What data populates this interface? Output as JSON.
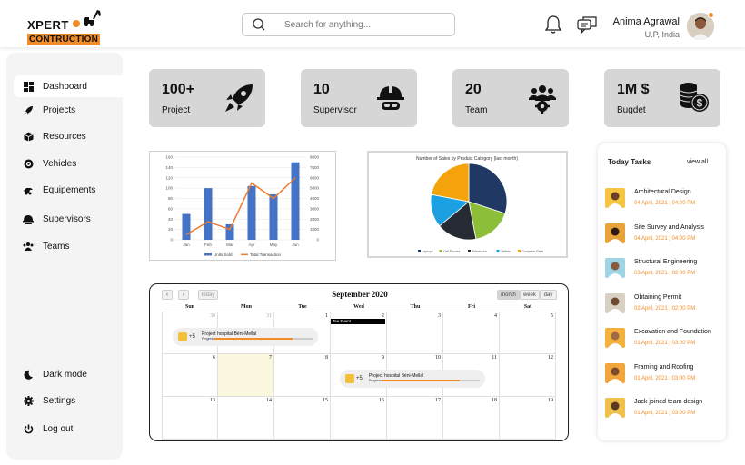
{
  "brand": {
    "line1": "XPERT",
    "line2": "CONTRUCTION",
    "accent": "#f28c28"
  },
  "search": {
    "placeholder": "Search for anything..."
  },
  "user": {
    "name": "Anima Agrawal",
    "location": "U.P, India"
  },
  "sidebar": {
    "items": [
      {
        "label": "Dashboard",
        "icon": "dashboard-icon"
      },
      {
        "label": "Projects",
        "icon": "rocket-icon"
      },
      {
        "label": "Resources",
        "icon": "box-icon"
      },
      {
        "label": "Vehicles",
        "icon": "vehicle-icon"
      },
      {
        "label": "Equipements",
        "icon": "equipment-icon"
      },
      {
        "label": "Supervisors",
        "icon": "helmet-icon"
      },
      {
        "label": "Teams",
        "icon": "team-icon"
      }
    ],
    "bottom": [
      {
        "label": "Dark mode",
        "icon": "moon-icon"
      },
      {
        "label": "Settings",
        "icon": "gear-icon"
      },
      {
        "label": "Log out",
        "icon": "power-icon"
      }
    ]
  },
  "stats": [
    {
      "value": "100+",
      "label": "Project",
      "icon": "rocket-icon"
    },
    {
      "value": "10",
      "label": "Supervisor",
      "icon": "helmet-icon"
    },
    {
      "value": "20",
      "label": "Team",
      "icon": "team-icon"
    },
    {
      "value": "1M $",
      "label": "Bugdet",
      "icon": "coins-icon"
    }
  ],
  "chart_data": [
    {
      "type": "bar",
      "categories": [
        "Jan",
        "Feb",
        "Mar",
        "Apr",
        "May",
        "Jun"
      ],
      "ylim": [
        0,
        160
      ],
      "y_ticks": [
        "160",
        "140",
        "120",
        "100",
        "80",
        "60",
        "40",
        "20",
        "0"
      ],
      "y2lim": [
        0,
        8000
      ],
      "y2_ticks": [
        "8000",
        "7000",
        "6000",
        "5000",
        "4000",
        "3000",
        "2000",
        "1000",
        "0"
      ],
      "series": [
        {
          "name": "Units Sold",
          "type": "bar",
          "axis": "left",
          "values": [
            50,
            100,
            30,
            104,
            88,
            150
          ],
          "color": "#4472c4"
        },
        {
          "name": "Total Transaction",
          "type": "line",
          "axis": "right",
          "values": [
            500,
            1750,
            1000,
            5500,
            4000,
            6000
          ],
          "color": "#ed7d31"
        }
      ],
      "legend": "bottom"
    },
    {
      "type": "pie",
      "title": "Number of Sales by Product Category (last month)",
      "slices": [
        {
          "name": "Laptops",
          "value": 30,
          "color": "#1f3864"
        },
        {
          "name": "Cell Phones",
          "value": 17,
          "color": "#8cbe3a"
        },
        {
          "name": "Televisions",
          "value": 17,
          "color": "#262b33"
        },
        {
          "name": "Tablets",
          "value": 14,
          "color": "#1ba1e2"
        },
        {
          "name": "Computer Parts",
          "value": 22,
          "color": "#f5a30a"
        }
      ],
      "legend": "bottom"
    }
  ],
  "calendar": {
    "title": "September 2020",
    "today_label": "today",
    "views": [
      "month",
      "week",
      "day"
    ],
    "prev": "‹",
    "next": "›",
    "weekdays": [
      "Sun",
      "Mon",
      "Tue",
      "Wed",
      "Thu",
      "Fri",
      "Sat"
    ],
    "weeks": [
      [
        "30",
        "31",
        "1",
        "2",
        "3",
        "4",
        "5"
      ],
      [
        "6",
        "7",
        "8",
        "9",
        "10",
        "11",
        "12"
      ],
      [
        "13",
        "14",
        "15",
        "16",
        "17",
        "18",
        "19"
      ]
    ],
    "tee_event": "Tee Event",
    "events": [
      {
        "title": "Project hospital Béni-Mellal",
        "progress_label": "Progress",
        "more": "+5",
        "progress": 0.8
      },
      {
        "title": "Project hospital Béni-Mellal",
        "progress_label": "Progress",
        "more": "+5",
        "progress": 0.8
      }
    ]
  },
  "tasks": {
    "title": "Today Tasks",
    "view_all": "view all",
    "items": [
      {
        "title": "Architectural Design",
        "date": "04 April, 2021 | 04:00 PM"
      },
      {
        "title": "Site Survey and Analysis",
        "date": "04 April, 2021 | 04:00 PM"
      },
      {
        "title": "Structural Engineering",
        "date": "03 April, 2021 | 02:00 PM"
      },
      {
        "title": "Obtaining Permit",
        "date": "02 April, 2021 | 02:00 PM"
      },
      {
        "title": "Excavation and Foundation",
        "date": "01 April, 2021 | 03:00 PM"
      },
      {
        "title": "Framing and Roofing",
        "date": "01 April, 2021 | 03:00 PM"
      },
      {
        "title": "Jack joined team design",
        "date": "01 April, 2021 | 03:00 PM"
      }
    ]
  }
}
